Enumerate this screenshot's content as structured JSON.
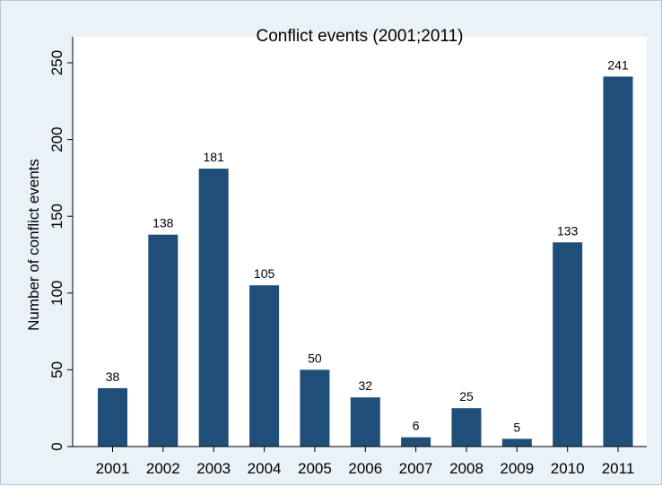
{
  "chart_data": {
    "type": "bar",
    "title": "Conflict events (2001;2011)",
    "xlabel": "",
    "ylabel": "Number of conflict events",
    "categories": [
      "2001",
      "2002",
      "2003",
      "2004",
      "2005",
      "2006",
      "2007",
      "2008",
      "2009",
      "2010",
      "2011"
    ],
    "values": [
      38,
      138,
      181,
      105,
      50,
      32,
      6,
      25,
      5,
      133,
      241
    ],
    "data_labels": [
      "38",
      "138",
      "181",
      "105",
      "50",
      "32",
      "6",
      "25",
      "5",
      "133",
      "241"
    ],
    "ylim": [
      0,
      250
    ],
    "yticks": [
      0,
      50,
      100,
      150,
      200,
      250
    ],
    "ytick_labels": [
      "0",
      "50",
      "100",
      "150",
      "200",
      "250"
    ],
    "grid": false,
    "legend": "none",
    "bar_color": "#1f4e79",
    "plot_background": "#ffffff",
    "outer_background": "#eaf1f7"
  }
}
